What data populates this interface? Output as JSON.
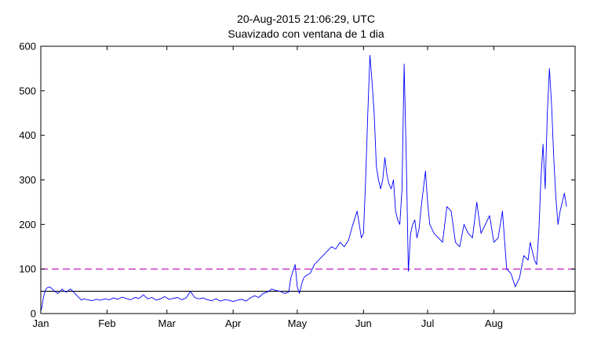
{
  "chart_data": {
    "type": "line",
    "title": "20-Aug-2015 21:06:29, UTC",
    "subtitle": "Suavizado con ventana de 1 dia",
    "xlabel": "",
    "ylabel": "",
    "x_tick_labels": [
      "Jan",
      "Feb",
      "Mar",
      "Apr",
      "May",
      "Jun",
      "Jul",
      "Aug"
    ],
    "x_tick_days": [
      0,
      31,
      59,
      90,
      120,
      151,
      181,
      212
    ],
    "y_ticks": [
      0,
      100,
      200,
      300,
      400,
      500,
      600
    ],
    "xlim": [
      0,
      250
    ],
    "ylim": [
      0,
      600
    ],
    "grid": false,
    "legend": "none",
    "reference_lines": [
      {
        "value": 100,
        "style": "dashed",
        "color": "#bf00bf"
      },
      {
        "value": 50,
        "style": "solid",
        "color": "#000000"
      }
    ],
    "series": [
      {
        "color": "#0000ff",
        "x": [
          0,
          0.5,
          1,
          1.5,
          2,
          2.5,
          3,
          4,
          5,
          6,
          7,
          8,
          9,
          10,
          11,
          12,
          13,
          14,
          15,
          16,
          17,
          18,
          19,
          20,
          22,
          24,
          26,
          28,
          30,
          32,
          34,
          36,
          38,
          40,
          42,
          44,
          46,
          48,
          50,
          52,
          54,
          56,
          58,
          60,
          62,
          64,
          66,
          68,
          70,
          72,
          74,
          76,
          78,
          80,
          82,
          84,
          86,
          88,
          90,
          92,
          94,
          96,
          98,
          100,
          102,
          104,
          106,
          108,
          110,
          112,
          114,
          116,
          117,
          118,
          119,
          120,
          121,
          122,
          123,
          124,
          126,
          128,
          130,
          132,
          134,
          136,
          138,
          140,
          142,
          144,
          146,
          148,
          149,
          150,
          151,
          152,
          153,
          154,
          155,
          156,
          157,
          158,
          159,
          160,
          161,
          162,
          163,
          164,
          165,
          166,
          167,
          168,
          169,
          170,
          171,
          172,
          173,
          174,
          175,
          176,
          177,
          178,
          179,
          180,
          181,
          182,
          184,
          186,
          188,
          190,
          192,
          194,
          196,
          198,
          200,
          202,
          204,
          206,
          208,
          210,
          212,
          214,
          216,
          218,
          220,
          222,
          224,
          226,
          228,
          229,
          230,
          231,
          232,
          233,
          234,
          235,
          236,
          237,
          238,
          239,
          240,
          241,
          242,
          243,
          244,
          245,
          246
        ],
        "y": [
          5,
          15,
          30,
          42,
          50,
          55,
          58,
          60,
          57,
          52,
          48,
          45,
          50,
          55,
          50,
          48,
          52,
          55,
          50,
          45,
          40,
          35,
          30,
          33,
          31,
          29,
          32,
          30,
          33,
          31,
          35,
          32,
          37,
          34,
          31,
          36,
          34,
          42,
          33,
          36,
          30,
          33,
          38,
          32,
          34,
          36,
          31,
          35,
          50,
          36,
          33,
          35,
          31,
          29,
          33,
          28,
          31,
          30,
          27,
          30,
          32,
          28,
          35,
          40,
          36,
          45,
          48,
          55,
          52,
          50,
          45,
          48,
          80,
          95,
          110,
          60,
          45,
          65,
          80,
          85,
          90,
          110,
          120,
          130,
          140,
          150,
          145,
          160,
          150,
          165,
          200,
          230,
          200,
          170,
          180,
          300,
          450,
          580,
          520,
          450,
          330,
          300,
          280,
          300,
          350,
          310,
          290,
          280,
          300,
          230,
          210,
          200,
          280,
          560,
          350,
          95,
          180,
          200,
          210,
          170,
          190,
          240,
          280,
          320,
          250,
          200,
          180,
          170,
          160,
          240,
          230,
          160,
          150,
          200,
          180,
          170,
          250,
          180,
          200,
          220,
          160,
          170,
          230,
          100,
          90,
          60,
          80,
          130,
          120,
          160,
          140,
          120,
          110,
          180,
          300,
          380,
          280,
          450,
          550,
          470,
          350,
          260,
          200,
          230,
          250,
          270,
          240
        ]
      }
    ]
  }
}
